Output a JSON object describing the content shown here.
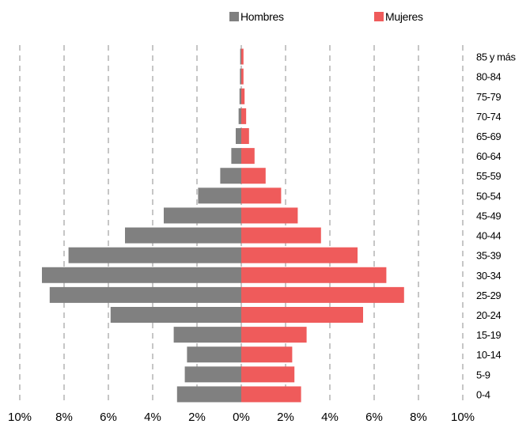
{
  "chart_data": {
    "type": "bar",
    "orientation": "horizontal",
    "variant": "population-pyramid",
    "categories": [
      "0-4",
      "5-9",
      "10-14",
      "15-19",
      "20-24",
      "25-29",
      "30-34",
      "35-39",
      "40-44",
      "45-49",
      "50-54",
      "55-59",
      "60-64",
      "65-69",
      "70-74",
      "75-79",
      "80-84",
      "85 y más"
    ],
    "series": [
      {
        "name": "Hombres",
        "color": "#808080",
        "side": "left",
        "values": [
          2.9,
          2.55,
          2.45,
          3.05,
          5.9,
          8.65,
          9.0,
          7.8,
          5.25,
          3.5,
          1.95,
          0.95,
          0.45,
          0.25,
          0.12,
          0.08,
          0.06,
          0.05
        ]
      },
      {
        "name": "Mujeres",
        "color": "#EF5B5B",
        "side": "right",
        "values": [
          2.7,
          2.4,
          2.3,
          2.95,
          5.5,
          7.35,
          6.55,
          5.25,
          3.6,
          2.55,
          1.8,
          1.1,
          0.6,
          0.35,
          0.22,
          0.15,
          0.1,
          0.1
        ]
      }
    ],
    "xlim": [
      -10,
      10
    ],
    "x_ticks": [
      -10,
      -8,
      -6,
      -4,
      -2,
      0,
      2,
      4,
      6,
      8,
      10
    ],
    "x_tick_labels": [
      "10%",
      "8%",
      "6%",
      "4%",
      "2%",
      "0%",
      "2%",
      "4%",
      "6%",
      "8%",
      "10%"
    ],
    "xlabel": "",
    "ylabel": "",
    "title": "",
    "grid": "vertical-dashed",
    "legend_position": "top",
    "category_label_position": "right"
  }
}
